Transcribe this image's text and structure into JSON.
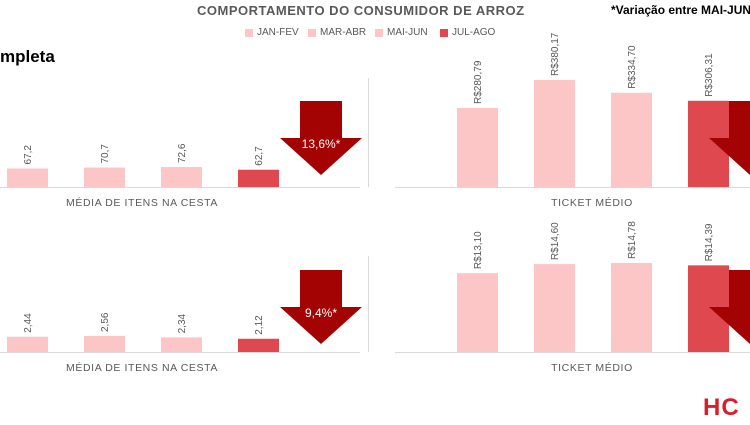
{
  "header": {
    "title": "COMPORTAMENTO DO CONSUMIDOR DE ARROZ",
    "note": "*Variação entre MAI-JUN",
    "section_label": "mpleta",
    "brand": "HC"
  },
  "colors": {
    "light_bar": "#fcc6c7",
    "highlight_bar": "#e0484f",
    "arrow": "#a30303",
    "axis": "#d9d9d9",
    "text": "#595959"
  },
  "legend": [
    {
      "label": "JAN-FEV",
      "color": "#fcc6c7"
    },
    {
      "label": "MAR-ABR",
      "color": "#fcc6c7"
    },
    {
      "label": "MAI-JUN",
      "color": "#fcc6c7"
    },
    {
      "label": "JUL-AGO",
      "color": "#e0484f"
    }
  ],
  "chart_data": [
    {
      "type": "bar",
      "xlabel": "MÉDIA DE ITENS NA CESTA",
      "categories": [
        "JAN-FEV",
        "MAR-ABR",
        "MAI-JUN",
        "JUL-AGO"
      ],
      "values": [
        67.2,
        70.7,
        72.6,
        62.7
      ],
      "labels": [
        "67,2",
        "70,7",
        "72,6",
        "62,7"
      ],
      "variation_label": "13,6%*",
      "variation_direction": "down"
    },
    {
      "type": "bar",
      "xlabel": "TICKET MÉDIO",
      "categories": [
        "JAN-FEV",
        "MAR-ABR",
        "MAI-JUN",
        "JUL-AGO"
      ],
      "values": [
        280.79,
        380.17,
        334.7,
        306.31
      ],
      "labels": [
        "R$280,79",
        "R$380,17",
        "R$334,70",
        "R$306,31"
      ],
      "variation_direction": "down"
    },
    {
      "type": "bar",
      "xlabel": "MÉDIA DE ITENS NA CESTA",
      "categories": [
        "JAN-FEV",
        "MAR-ABR",
        "MAI-JUN",
        "JUL-AGO"
      ],
      "values": [
        2.44,
        2.56,
        2.34,
        2.12
      ],
      "labels": [
        "2,44",
        "2,56",
        "2,34",
        "2,12"
      ],
      "variation_label": "9,4%*",
      "variation_direction": "down"
    },
    {
      "type": "bar",
      "xlabel": "TICKET MÉDIO",
      "categories": [
        "JAN-FEV",
        "MAR-ABR",
        "MAI-JUN",
        "JUL-AGO"
      ],
      "values": [
        13.1,
        14.6,
        14.78,
        14.39
      ],
      "labels": [
        "R$13,10",
        "R$14,60",
        "R$14,78",
        "R$14,39"
      ],
      "variation_direction": "down"
    }
  ]
}
